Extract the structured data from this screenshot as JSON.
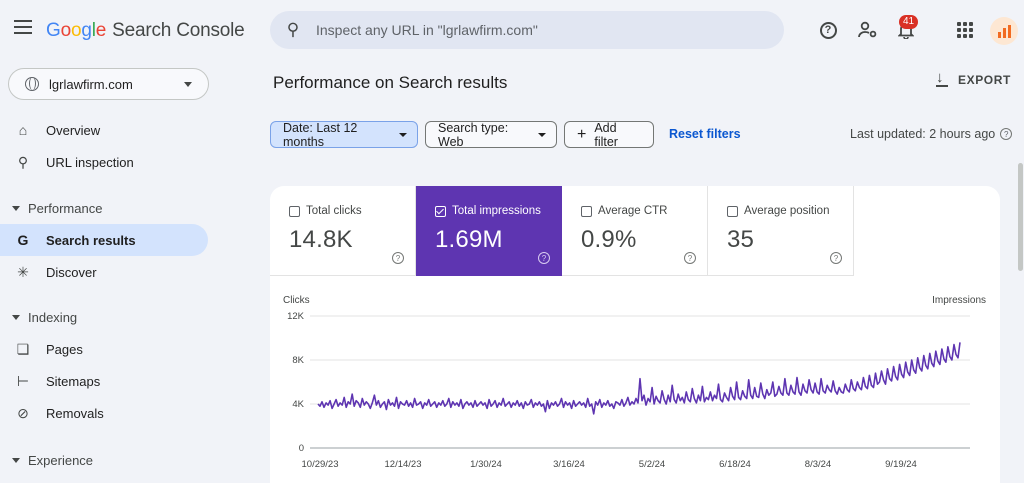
{
  "header": {
    "logo_google": [
      "G",
      "o",
      "o",
      "g",
      "l",
      "e"
    ],
    "product": "Search Console",
    "search_placeholder": "Inspect any URL in \"lgrlawfirm.com\"",
    "notification_count": "41"
  },
  "sidebar": {
    "property": "lgrlawfirm.com",
    "items": [
      {
        "label": "Overview",
        "icon": "home-icon"
      },
      {
        "label": "URL inspection",
        "icon": "search-icon"
      }
    ],
    "performance_section": "Performance",
    "performance_items": [
      {
        "label": "Search results",
        "icon": "google-g-icon"
      },
      {
        "label": "Discover",
        "icon": "asterisk-icon"
      }
    ],
    "indexing_section": "Indexing",
    "indexing_items": [
      {
        "label": "Pages",
        "icon": "pages-icon"
      },
      {
        "label": "Sitemaps",
        "icon": "sitemap-icon"
      },
      {
        "label": "Removals",
        "icon": "removals-icon"
      }
    ],
    "experience_section": "Experience"
  },
  "main": {
    "title": "Performance on Search results",
    "export_label": "EXPORT",
    "filters": {
      "date": "Date: Last 12 months",
      "search_type": "Search type: Web",
      "add_filter": "Add filter",
      "reset": "Reset filters"
    },
    "last_updated": "Last updated: 2 hours ago",
    "metrics": [
      {
        "label": "Total clicks",
        "value": "14.8K",
        "selected": false
      },
      {
        "label": "Total impressions",
        "value": "1.69M",
        "selected": true
      },
      {
        "label": "Average CTR",
        "value": "0.9%",
        "selected": false
      },
      {
        "label": "Average position",
        "value": "35",
        "selected": false
      }
    ]
  },
  "colors": {
    "accent": "#5e35b1",
    "date_chip": "#d3e3fd",
    "link": "#0b57d0"
  },
  "chart_data": {
    "type": "line",
    "left_axis_label": "Clicks",
    "right_axis_label": "Impressions",
    "y_ticks": [
      "0",
      "4K",
      "8K",
      "12K"
    ],
    "ylim": [
      0,
      12000
    ],
    "x_tick_labels": [
      "10/29/23",
      "12/14/23",
      "1/30/24",
      "3/16/24",
      "5/2/24",
      "6/18/24",
      "8/3/24",
      "9/19/24"
    ],
    "grid": true,
    "series": [
      {
        "color": "#5e35b1",
        "values": [
          4000,
          3800,
          4200,
          3700,
          4100,
          3900,
          4300,
          3600,
          4000,
          4400,
          3800,
          4100,
          3900,
          4600,
          3700,
          4200,
          4000,
          4900,
          3800,
          4300,
          4100,
          3700,
          4500,
          3900,
          4200,
          4000,
          3600,
          4100,
          4800,
          3900,
          4300,
          3700,
          4000,
          4200,
          3500,
          4400,
          3900,
          4100,
          3800,
          4600,
          3600,
          4200,
          4000,
          3900,
          4300,
          3800,
          4100,
          3700,
          4500,
          3900,
          4000,
          4200,
          3600,
          4100,
          3900,
          4400,
          3800,
          4000,
          4200,
          3700,
          4100,
          3900,
          4300,
          3800,
          4000,
          4500,
          3700,
          4200,
          3900,
          4100,
          3800,
          4400,
          3600,
          4000,
          4200,
          3900,
          4100,
          3700,
          4300,
          3800,
          4000,
          4200,
          3900,
          4100,
          3600,
          4400,
          3800,
          4000,
          4300,
          3700,
          4100,
          3900,
          4500,
          3800,
          4000,
          4200,
          3700,
          4100,
          3900,
          4300,
          3800,
          4100,
          3600,
          4200,
          3900,
          4000,
          4400,
          3700,
          4100,
          3900,
          4200,
          3800,
          4000,
          3300,
          4300,
          3600,
          4100,
          3900,
          4200,
          3800,
          4000,
          4500,
          3700,
          4200,
          3900,
          4100,
          3600,
          4300,
          3800,
          4000,
          4200,
          3900,
          4100,
          3700,
          4500,
          3800,
          4000,
          3100,
          4200,
          3900,
          4400,
          3700,
          4100,
          3900,
          4300,
          3800,
          4000,
          3600,
          4200,
          4100,
          3900,
          4400,
          3800,
          4100,
          4600,
          3900,
          4200,
          4000,
          4500,
          4100,
          6300,
          4300,
          4800,
          3900,
          4500,
          4200,
          5500,
          4000,
          4700,
          4300,
          4100,
          5200,
          4400,
          4000,
          4800,
          4200,
          5700,
          4400,
          4100,
          4900,
          4300,
          4600,
          4100,
          5100,
          4400,
          4200,
          5400,
          4500,
          4100,
          4800,
          4300,
          5600,
          4200,
          4600,
          4400,
          5100,
          4300,
          4800,
          4500,
          5800,
          4400,
          4200,
          5000,
          4600,
          4300,
          5500,
          4700,
          4400,
          6000,
          4600,
          4400,
          5200,
          4700,
          4500,
          6200,
          4800,
          4500,
          5500,
          4700,
          4600,
          5900,
          4900,
          4500,
          5300,
          4800,
          5000,
          6000,
          4700,
          4900,
          5600,
          5000,
          4800,
          6300,
          5000,
          4800,
          5700,
          5100,
          4900,
          6400,
          5100,
          4800,
          5800,
          5200,
          5000,
          6200,
          5300,
          5000,
          5900,
          5100,
          4900,
          6300,
          5200,
          5000,
          5700,
          5300,
          5100,
          6100,
          5200,
          4900,
          5500,
          5100,
          5000,
          5800,
          5300,
          5100,
          6200,
          5400,
          5200,
          6000,
          5500,
          5300,
          6400,
          5600,
          5400,
          6600,
          5700,
          5500,
          6800,
          5800,
          6000,
          7000,
          6200,
          5800,
          7200,
          6300,
          6100,
          7400,
          6500,
          6200,
          7600,
          6700,
          6400,
          7800,
          6900,
          6600,
          8000,
          7100,
          6800,
          8200,
          7300,
          7000,
          8400,
          7500,
          7200,
          8600,
          7700,
          7400,
          8800,
          7900,
          7600,
          9000,
          8100,
          7800,
          9200,
          8300,
          8000,
          9400,
          8500,
          8200,
          9600
        ]
      }
    ]
  }
}
